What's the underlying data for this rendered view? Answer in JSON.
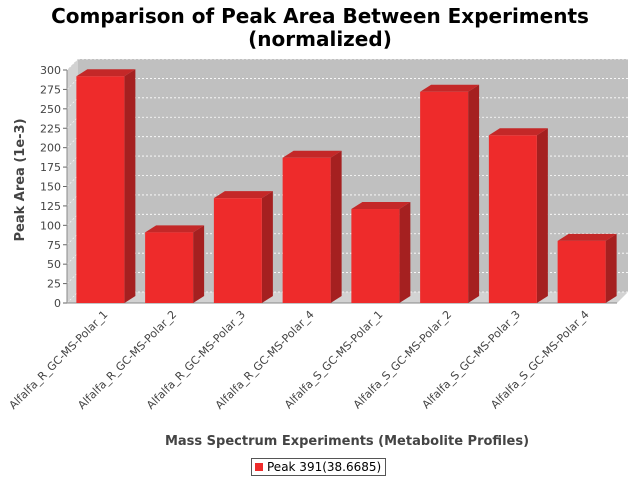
{
  "chart_data": {
    "type": "bar",
    "title": "Comparison of Peak Area Between Experiments",
    "subtitle": "(normalized)",
    "xlabel": "Mass Spectrum Experiments (Metabolite Profiles)",
    "ylabel": "Peak Area (1e-3)",
    "categories": [
      "Alfalfa_R_GC-MS-Polar_1",
      "Alfalfa_R_GC-MS-Polar_2",
      "Alfalfa_R_GC-MS-Polar_3",
      "Alfalfa_R_GC-MS-Polar_4",
      "Alfalfa_S_GC-MS-Polar_1",
      "Alfalfa_S_GC-MS-Polar_2",
      "Alfalfa_S_GC-MS-Polar_3",
      "Alfalfa_S_GC-MS-Polar_4"
    ],
    "series": [
      {
        "name": "Peak 391(38.6685)",
        "values": [
          292,
          91,
          135,
          187,
          121,
          272,
          216,
          80
        ]
      }
    ],
    "ylim": [
      0,
      300
    ],
    "yticks": [
      "0",
      "25",
      "50",
      "75",
      "100",
      "125",
      "150",
      "175",
      "200",
      "225",
      "250",
      "275",
      "300"
    ],
    "grid": true,
    "legend_position": "bottom",
    "colors": {
      "bar": "#ee2b2b",
      "bar_side": "#a52020",
      "bar_top": "#c42828",
      "plot_background": "#c0c0c0",
      "plot_wall": "#d2d2d2"
    }
  }
}
